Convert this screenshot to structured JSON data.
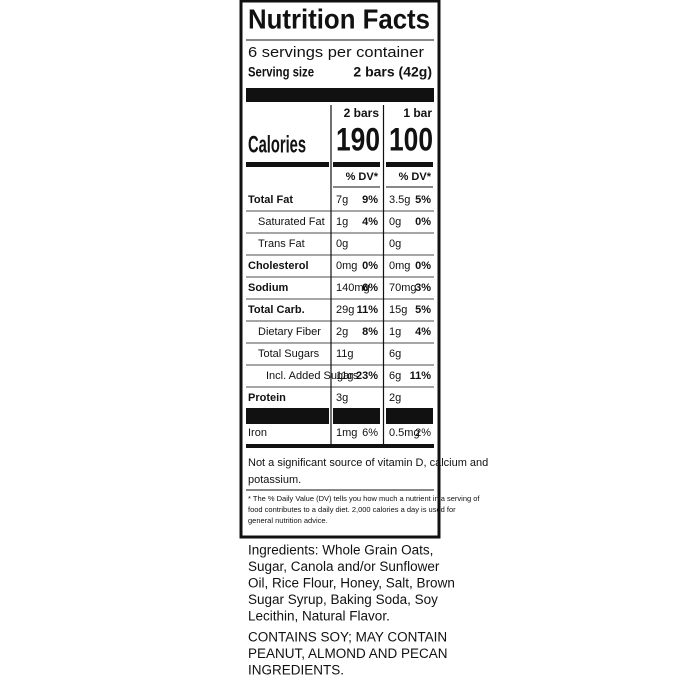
{
  "header": {
    "title": "Nutrition Facts",
    "servings": "6 servings per container",
    "serving_size_label": "Serving size",
    "serving_size": "2 bars (42g)"
  },
  "columns": [
    {
      "serving": "2 bars",
      "calories": "190"
    },
    {
      "serving": "1 bar",
      "calories": "100"
    }
  ],
  "calories_label": "Calories",
  "dv_header": "% DV*",
  "rows": [
    {
      "label": "Total Fat",
      "style": "bold",
      "cells": [
        {
          "amount": "7g",
          "dv": "9%"
        },
        {
          "amount": "3.5g",
          "dv": "5%"
        }
      ]
    },
    {
      "label": "Saturated Fat",
      "style": "sub",
      "cells": [
        {
          "amount": "1g",
          "dv": "4%"
        },
        {
          "amount": "0g",
          "dv": "0%"
        }
      ]
    },
    {
      "label": "Trans Fat",
      "style": "sub",
      "cells": [
        {
          "amount": "0g"
        },
        {
          "amount": "0g"
        }
      ]
    },
    {
      "label": "Cholesterol",
      "style": "bold",
      "cells": [
        {
          "amount": "0mg",
          "dv": "0%"
        },
        {
          "amount": "0mg",
          "dv": "0%"
        }
      ]
    },
    {
      "label": "Sodium",
      "style": "bold",
      "cells": [
        {
          "amount": "140mg",
          "dv": "6%"
        },
        {
          "amount": "70mg",
          "dv": "3%"
        }
      ]
    },
    {
      "label": "Total Carb.",
      "style": "bold",
      "cells": [
        {
          "amount": "29g",
          "dv": "11%"
        },
        {
          "amount": "15g",
          "dv": "5%"
        }
      ]
    },
    {
      "label": "Dietary Fiber",
      "style": "sub",
      "cells": [
        {
          "amount": "2g",
          "dv": "8%"
        },
        {
          "amount": "1g",
          "dv": "4%"
        }
      ]
    },
    {
      "label": "Total Sugars",
      "style": "sub",
      "cells": [
        {
          "amount": "11g"
        },
        {
          "amount": "6g"
        }
      ]
    },
    {
      "label": "Incl. Added Sugars",
      "style": "subsub",
      "cells": [
        {
          "amount": "11g",
          "dv": "23%"
        },
        {
          "amount": "6g",
          "dv": "11%"
        }
      ]
    },
    {
      "label": "Protein",
      "style": "bold",
      "cells": [
        {
          "amount": "3g"
        },
        {
          "amount": "2g"
        }
      ]
    },
    {
      "label": "Iron",
      "style": "plain",
      "cells": [
        {
          "amount": "1mg",
          "dv": "6%"
        },
        {
          "amount": "0.5mg",
          "dv": "2%"
        }
      ]
    }
  ],
  "note": [
    "Not a significant source of vitamin D, calcium and",
    "potassium."
  ],
  "footnote": [
    "* The % Daily Value (DV) tells you how much a nutrient in a serving of",
    "food contributes to a daily diet. 2,000 calories a day is used for",
    "general nutrition advice."
  ],
  "ingredients": [
    "Ingredients: Whole Grain Oats,",
    "Sugar, Canola and/or Sunflower",
    "Oil, Rice Flour, Honey, Salt, Brown",
    "Sugar Syrup, Baking Soda, Soy",
    "Lecithin, Natural Flavor."
  ],
  "allergens": [
    "CONTAINS SOY; MAY CONTAIN",
    "PEANUT, ALMOND AND PECAN",
    "INGREDIENTS."
  ]
}
